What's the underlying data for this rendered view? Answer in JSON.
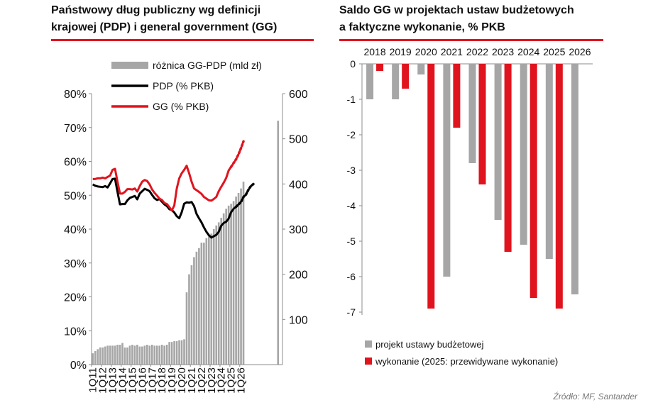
{
  "left": {
    "title_line1": "Państwowy dług publiczny wg definicji",
    "title_line2": "krajowej (PDP) i general government (GG)",
    "legend": {
      "diff": "różnica GG-PDP (mld zł)",
      "pdp": "PDP (% PKB)",
      "gg": "GG (% PKB)"
    }
  },
  "right": {
    "title_line1": "Saldo GG w projektach ustaw budżetowych",
    "title_line2": "a faktyczne wykonanie, % PKB",
    "legend": {
      "projekt": "projekt ustawy budżetowej",
      "wykonanie": "wykonanie (2025: przewidywane wykonanie)"
    }
  },
  "source": "Źródło: MF, Santander",
  "colors": {
    "red": "#e0141e",
    "grey": "#a6a6a6",
    "black": "#000000"
  },
  "chart_data": [
    {
      "type": "line",
      "title": "Państwowy dług publiczny wg definicji krajowej (PDP) i general government (GG)",
      "y_left": {
        "ylim": [
          0,
          80
        ],
        "ticks": [
          "0%",
          "10%",
          "20%",
          "30%",
          "40%",
          "50%",
          "60%",
          "70%",
          "80%"
        ]
      },
      "y_right": {
        "ylim": [
          0,
          600
        ],
        "ticks": [
          "100",
          "200",
          "300",
          "400",
          "500",
          "600"
        ]
      },
      "x_tick_labels": [
        "1Q11",
        "1Q12",
        "1Q13",
        "1Q14",
        "1Q15",
        "1Q16",
        "1Q17",
        "1Q18",
        "1Q19",
        "1Q20",
        "1Q21",
        "1Q22",
        "1Q23",
        "1Q24",
        "1Q25",
        "1Q26"
      ],
      "series": [
        {
          "name": "różnica GG-PDP (mld zł)",
          "axis": "right",
          "kind": "bar",
          "values": [
            25,
            30,
            34,
            38,
            38,
            40,
            42,
            42,
            42,
            42,
            44,
            44,
            48,
            38,
            38,
            42,
            44,
            42,
            44,
            40,
            40,
            42,
            44,
            42,
            44,
            42,
            42,
            42,
            44,
            42,
            44,
            50,
            50,
            52,
            52,
            54,
            54,
            56,
            160,
            200,
            220,
            238,
            250,
            258,
            270,
            270,
            280,
            284,
            290,
            300,
            308,
            315,
            325,
            335,
            345,
            352,
            356,
            362,
            372,
            380,
            390,
            405,
            null,
            null,
            null,
            null,
            null,
            null,
            null,
            null,
            null,
            null,
            null,
            null,
            null,
            540
          ]
        },
        {
          "name": "PDP (% PKB)",
          "axis": "left",
          "kind": "line",
          "values": [
            53.2,
            52.8,
            52.6,
            52.5,
            52.4,
            52.7,
            52.3,
            53.5,
            54.8,
            54.9,
            51.0,
            47.3,
            47.4,
            47.4,
            48.5,
            49.2,
            49.5,
            49.8,
            48.8,
            50.5,
            51.2,
            51.9,
            51.6,
            51.2,
            50.1,
            49.1,
            48.6,
            48.9,
            48.1,
            47.3,
            46.8,
            45.9,
            45.6,
            44.9,
            43.8,
            43.2,
            45.0,
            47.5,
            47.9,
            47.8,
            48.0,
            46.8,
            44.5,
            43.2,
            42.0,
            40.5,
            39.2,
            38.2,
            37.5,
            37.9,
            38.3,
            39.2,
            41.0,
            41.8,
            42.2,
            43.1,
            45.0,
            46.0,
            46.6,
            47.3,
            48.0,
            49.5,
            50.2,
            51.6,
            52.7,
            53.3
          ]
        },
        {
          "name": "GG (% PKB)",
          "axis": "left",
          "kind": "line",
          "values": [
            54.8,
            54.8,
            55.0,
            55.0,
            55.2,
            55.0,
            55.4,
            55.8,
            57.5,
            57.8,
            54.0,
            50.5,
            50.5,
            51.0,
            51.8,
            51.8,
            51.7,
            52.0,
            51.1,
            52.7,
            54.0,
            54.5,
            54.2,
            53.2,
            51.7,
            50.7,
            49.9,
            49.0,
            48.6,
            47.7,
            47.4,
            46.5,
            45.5,
            47.0,
            52.0,
            55.0,
            56.5,
            57.5,
            58.7,
            56.5,
            54.0,
            52.0,
            51.5,
            51.0,
            50.4,
            49.5,
            49.0,
            48.5,
            48.4,
            48.9,
            49.5,
            51.2,
            52.5,
            53.7,
            55.1,
            57.3,
            58.4,
            59.5,
            60.6,
            62.1,
            63.9,
            65.9
          ]
        }
      ]
    },
    {
      "type": "bar",
      "title": "Saldo GG w projektach ustaw budżetowych a faktyczne wykonanie, % PKB",
      "categories": [
        "2018",
        "2019",
        "2020",
        "2021",
        "2022",
        "2023",
        "2024",
        "2025",
        "2026"
      ],
      "ylim": [
        -7,
        0
      ],
      "yticks": [
        "0",
        "-1",
        "-2",
        "-3",
        "-4",
        "-5",
        "-6",
        "-7"
      ],
      "series": [
        {
          "name": "projekt ustawy budżetowej",
          "values": [
            -1.0,
            -1.0,
            -0.3,
            -6.0,
            -2.8,
            -4.4,
            -5.1,
            -5.5,
            -6.5
          ]
        },
        {
          "name": "wykonanie (2025: przewidywane wykonanie)",
          "values": [
            -0.2,
            -0.7,
            -6.9,
            -1.8,
            -3.4,
            -5.3,
            -6.6,
            -6.9,
            null
          ]
        }
      ]
    }
  ]
}
